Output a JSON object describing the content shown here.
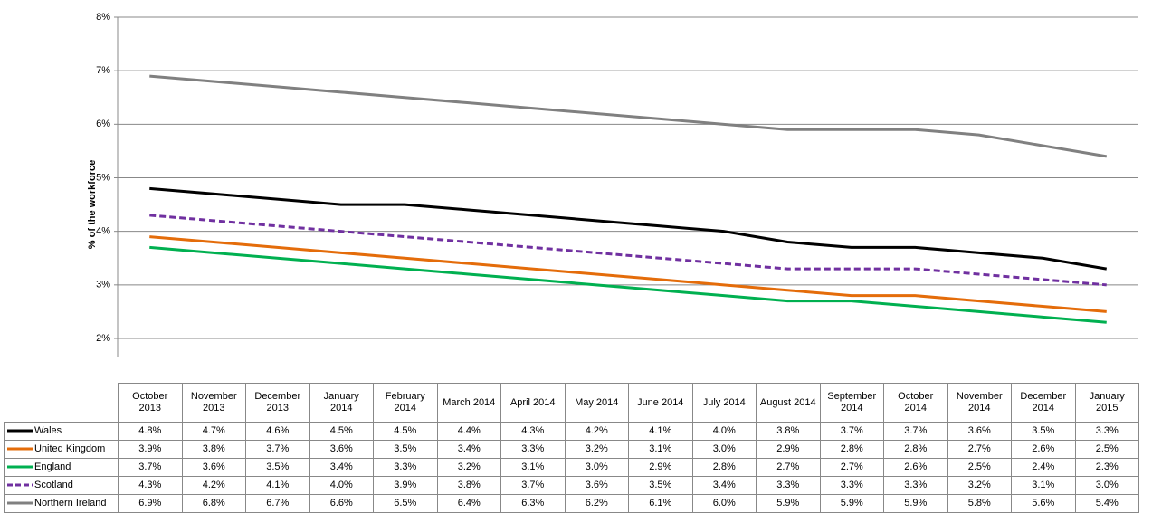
{
  "chart_data": {
    "type": "line",
    "ylabel": "% of the workforce",
    "categories": [
      "October 2013",
      "November 2013",
      "December 2013",
      "January 2014",
      "February 2014",
      "March 2014",
      "April 2014",
      "May 2014",
      "June 2014",
      "July 2014",
      "August 2014",
      "September 2014",
      "October 2014",
      "November 2014",
      "December 2014",
      "January 2015"
    ],
    "ylim": [
      2,
      8
    ],
    "yticks": [
      {
        "value": 2,
        "label": "2%"
      },
      {
        "value": 3,
        "label": "3%"
      },
      {
        "value": 4,
        "label": "4%"
      },
      {
        "value": 5,
        "label": "5%"
      },
      {
        "value": 6,
        "label": "6%"
      },
      {
        "value": 7,
        "label": "7%"
      },
      {
        "value": 8,
        "label": "8%"
      }
    ],
    "grid": true,
    "series": [
      {
        "name": "Wales",
        "color": "#000000",
        "dashed": false,
        "values": [
          4.8,
          4.7,
          4.6,
          4.5,
          4.5,
          4.4,
          4.3,
          4.2,
          4.1,
          4.0,
          3.8,
          3.7,
          3.7,
          3.6,
          3.5,
          3.3
        ],
        "value_labels": [
          "4.8%",
          "4.7%",
          "4.6%",
          "4.5%",
          "4.5%",
          "4.4%",
          "4.3%",
          "4.2%",
          "4.1%",
          "4.0%",
          "3.8%",
          "3.7%",
          "3.7%",
          "3.6%",
          "3.5%",
          "3.3%"
        ]
      },
      {
        "name": "United Kingdom",
        "color": "#e46c0a",
        "dashed": false,
        "values": [
          3.9,
          3.8,
          3.7,
          3.6,
          3.5,
          3.4,
          3.3,
          3.2,
          3.1,
          3.0,
          2.9,
          2.8,
          2.8,
          2.7,
          2.6,
          2.5
        ],
        "value_labels": [
          "3.9%",
          "3.8%",
          "3.7%",
          "3.6%",
          "3.5%",
          "3.4%",
          "3.3%",
          "3.2%",
          "3.1%",
          "3.0%",
          "2.9%",
          "2.8%",
          "2.8%",
          "2.7%",
          "2.6%",
          "2.5%"
        ]
      },
      {
        "name": "England",
        "color": "#00b050",
        "dashed": false,
        "values": [
          3.7,
          3.6,
          3.5,
          3.4,
          3.3,
          3.2,
          3.1,
          3.0,
          2.9,
          2.8,
          2.7,
          2.7,
          2.6,
          2.5,
          2.4,
          2.3
        ],
        "value_labels": [
          "3.7%",
          "3.6%",
          "3.5%",
          "3.4%",
          "3.3%",
          "3.2%",
          "3.1%",
          "3.0%",
          "2.9%",
          "2.8%",
          "2.7%",
          "2.7%",
          "2.6%",
          "2.5%",
          "2.4%",
          "2.3%"
        ]
      },
      {
        "name": "Scotland",
        "color": "#7030a0",
        "dashed": true,
        "values": [
          4.3,
          4.2,
          4.1,
          4.0,
          3.9,
          3.8,
          3.7,
          3.6,
          3.5,
          3.4,
          3.3,
          3.3,
          3.3,
          3.2,
          3.1,
          3.0
        ],
        "value_labels": [
          "4.3%",
          "4.2%",
          "4.1%",
          "4.0%",
          "3.9%",
          "3.8%",
          "3.7%",
          "3.6%",
          "3.5%",
          "3.4%",
          "3.3%",
          "3.3%",
          "3.3%",
          "3.2%",
          "3.1%",
          "3.0%"
        ]
      },
      {
        "name": "Northern Ireland",
        "color": "#808080",
        "dashed": false,
        "values": [
          6.9,
          6.8,
          6.7,
          6.6,
          6.5,
          6.4,
          6.3,
          6.2,
          6.1,
          6.0,
          5.9,
          5.9,
          5.9,
          5.8,
          5.6,
          5.4
        ],
        "value_labels": [
          "6.9%",
          "6.8%",
          "6.7%",
          "6.6%",
          "6.5%",
          "6.4%",
          "6.3%",
          "6.2%",
          "6.1%",
          "6.0%",
          "5.9%",
          "5.9%",
          "5.9%",
          "5.8%",
          "5.6%",
          "5.4%"
        ]
      }
    ]
  }
}
